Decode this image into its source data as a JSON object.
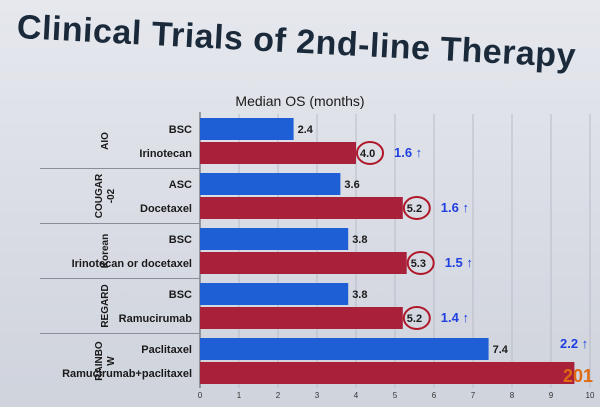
{
  "title": "Clinical Trials of 2nd-line Therapy",
  "colors": {
    "control": "#1f5fd6",
    "experimental": "#a8203a",
    "circle": "#b0182a",
    "gain": "#1f3fe0",
    "corner": "#e06a10"
  },
  "chart_data": {
    "type": "bar",
    "orientation": "horizontal",
    "subtitle": "Median OS (months)",
    "xlim": [
      0,
      10
    ],
    "xticks": [
      "0",
      "1",
      "2",
      "3",
      "4",
      "5",
      "6",
      "7",
      "8",
      "9",
      "10"
    ],
    "groups": [
      {
        "name": "AIO",
        "bars": [
          {
            "label": "BSC",
            "value": 2.4,
            "value_label": "2.4",
            "kind": "control"
          },
          {
            "label": "Irinotecan",
            "value": 4.0,
            "value_label": "4.0",
            "kind": "experimental",
            "circled": true
          }
        ],
        "gain": "1.6 ↑"
      },
      {
        "name": "COUGAR\n-02",
        "bars": [
          {
            "label": "ASC",
            "value": 3.6,
            "value_label": "3.6",
            "kind": "control"
          },
          {
            "label": "Docetaxel",
            "value": 5.2,
            "value_label": "5.2",
            "kind": "experimental",
            "circled": true
          }
        ],
        "gain": "1.6 ↑"
      },
      {
        "name": "Korean",
        "bars": [
          {
            "label": "BSC",
            "value": 3.8,
            "value_label": "3.8",
            "kind": "control"
          },
          {
            "label": "Irinotecan or docetaxel",
            "value": 5.3,
            "value_label": "5.3",
            "kind": "experimental",
            "circled": true
          }
        ],
        "gain": "1.5 ↑"
      },
      {
        "name": "REGARD",
        "bars": [
          {
            "label": "BSC",
            "value": 3.8,
            "value_label": "3.8",
            "kind": "control"
          },
          {
            "label": "Ramucirumab",
            "value": 5.2,
            "value_label": "5.2",
            "kind": "experimental",
            "circled": true
          }
        ],
        "gain": "1.4 ↑"
      },
      {
        "name": "RAINBO\nW",
        "bars": [
          {
            "label": "Paclitaxel",
            "value": 7.4,
            "value_label": "7.4",
            "kind": "control"
          },
          {
            "label": "Ramucirumab+paclitaxel",
            "value": 9.6,
            "value_label": "",
            "kind": "experimental",
            "circled": false
          }
        ],
        "gain": "2.2 ↑"
      }
    ],
    "corner_text": "201"
  }
}
